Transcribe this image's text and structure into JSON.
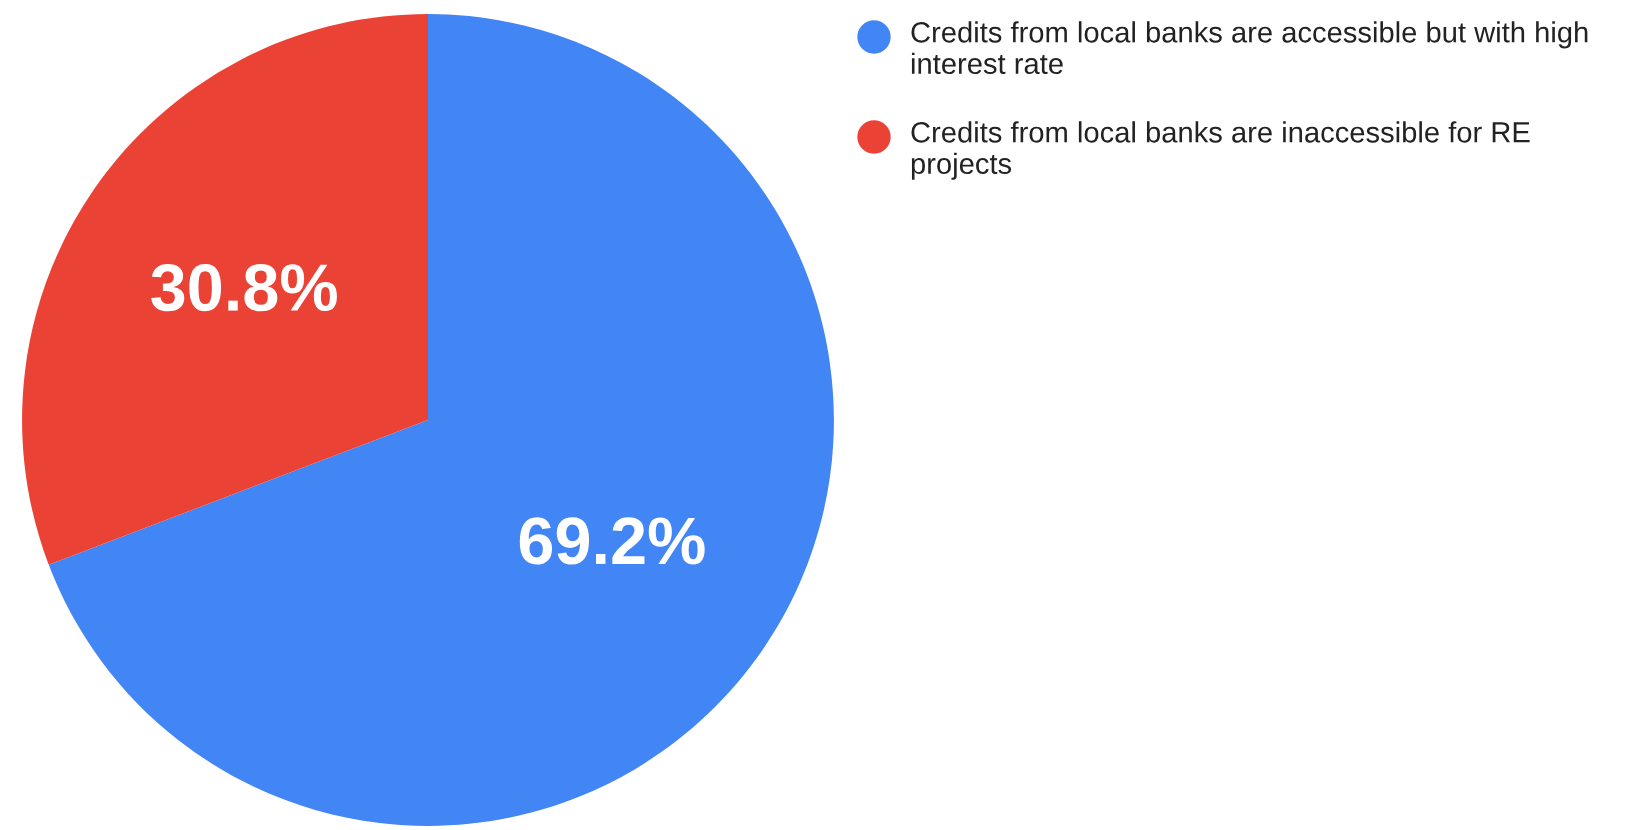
{
  "chart_data": {
    "type": "pie",
    "categories": [
      "Credits from local banks are accessible but with high interest rate",
      "Credits from local banks are inaccessible for RE projects"
    ],
    "values": [
      69.2,
      30.8
    ],
    "colors": [
      "#4285f4",
      "#ea4335"
    ],
    "value_labels": [
      "69.2%",
      "30.8%"
    ],
    "legend": "top right"
  }
}
